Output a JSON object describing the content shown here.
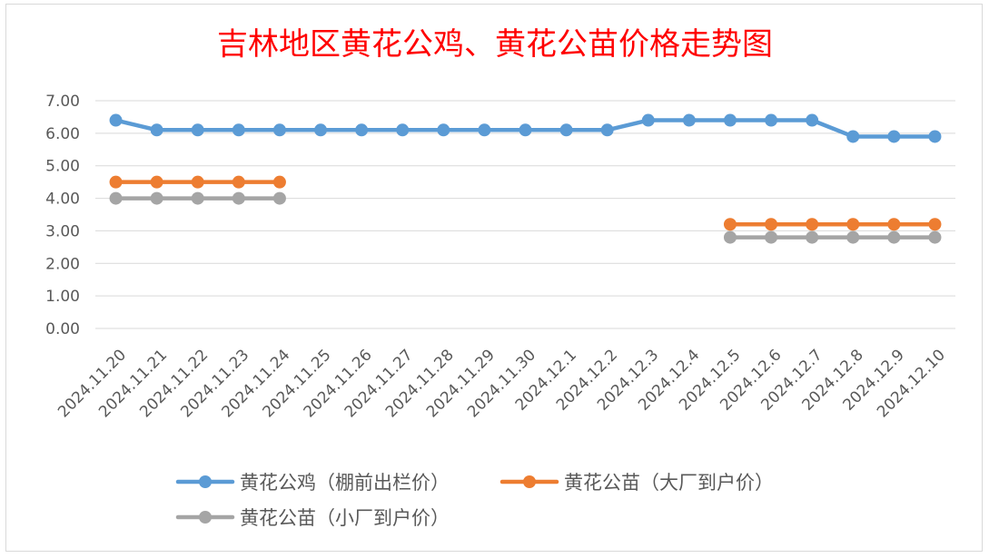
{
  "chart_data": {
    "type": "line",
    "title": "吉林地区黄花公鸡、黄花公苗价格走势图",
    "categories": [
      "2024.11.20",
      "2024.11.21",
      "2024.11.22",
      "2024.11.23",
      "2024.11.24",
      "2024.11.25",
      "2024.11.26",
      "2024.11.27",
      "2024.11.28",
      "2024.11.29",
      "2024.11.30",
      "2024.12.1",
      "2024.12.2",
      "2024.12.3",
      "2024.12.4",
      "2024.12.5",
      "2024.12.6",
      "2024.12.7",
      "2024.12.8",
      "2024.12.9",
      "2024.12.10"
    ],
    "ylim": [
      0,
      7
    ],
    "yticks": [
      "0.00",
      "1.00",
      "2.00",
      "3.00",
      "4.00",
      "5.00",
      "6.00",
      "7.00"
    ],
    "grid": true,
    "legend_position": "bottom",
    "series": [
      {
        "name": "黄花公鸡（棚前出栏价）",
        "color": "#5b9bd5",
        "values": [
          6.4,
          6.1,
          6.1,
          6.1,
          6.1,
          6.1,
          6.1,
          6.1,
          6.1,
          6.1,
          6.1,
          6.1,
          6.1,
          6.4,
          6.4,
          6.4,
          6.4,
          6.4,
          5.9,
          5.9,
          5.9
        ]
      },
      {
        "name": "黄花公苗（大厂到户价）",
        "color": "#ed7d31",
        "values": [
          4.5,
          4.5,
          4.5,
          4.5,
          4.5,
          null,
          null,
          null,
          null,
          null,
          null,
          null,
          null,
          null,
          null,
          3.2,
          3.2,
          3.2,
          3.2,
          3.2,
          3.2
        ]
      },
      {
        "name": "黄花公苗（小厂到户价）",
        "color": "#a5a5a5",
        "values": [
          4.0,
          4.0,
          4.0,
          4.0,
          4.0,
          null,
          null,
          null,
          null,
          null,
          null,
          null,
          null,
          null,
          null,
          2.8,
          2.8,
          2.8,
          2.8,
          2.8,
          2.8
        ]
      }
    ]
  }
}
